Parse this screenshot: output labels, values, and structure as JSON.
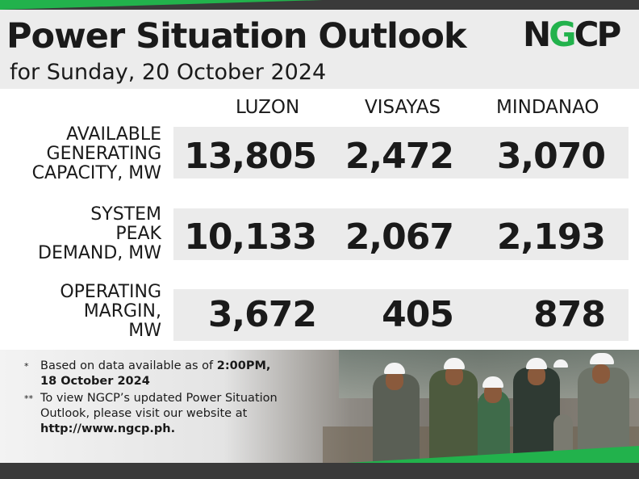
{
  "header": {
    "title": "Power Situation Outlook",
    "subtitle": "for Sunday, 20 October 2024",
    "logo": "NGCP"
  },
  "columns": [
    "LUZON",
    "VISAYAS",
    "MINDANAO"
  ],
  "rows": [
    {
      "label_lines": [
        "AVAILABLE",
        "GENERATING",
        "CAPACITY, MW"
      ],
      "values": [
        "13,805",
        "2,472",
        "3,070"
      ]
    },
    {
      "label_lines": [
        "SYSTEM",
        "PEAK",
        "DEMAND, MW"
      ],
      "values": [
        "10,133",
        "2,067",
        "2,193"
      ]
    },
    {
      "label_lines": [
        "OPERATING",
        "MARGIN,",
        "MW"
      ],
      "values": [
        "3,672",
        "405",
        "878"
      ]
    }
  ],
  "notes": [
    {
      "mark": "*",
      "text_before": "Based on data available as of ",
      "bold_1": "2:00PM,",
      "bold_2": "18 October 2024"
    },
    {
      "mark": "**",
      "line1": "To view NGCP’s updated Power Situation",
      "line2": "Outlook, please visit our website at",
      "url": "http://www.ngcp.ph."
    }
  ],
  "colors": {
    "brand_green": "#22b24c",
    "dark_bar": "#3a3a3a",
    "band_gray": "#ebebeb"
  }
}
